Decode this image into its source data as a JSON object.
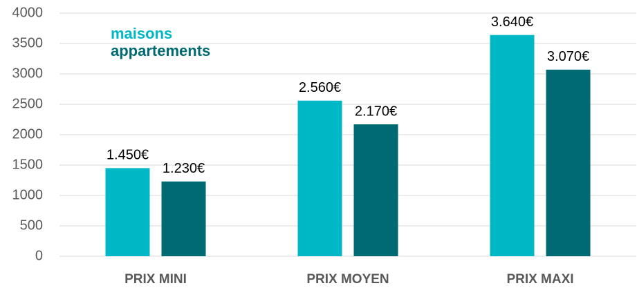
{
  "chart_data": {
    "type": "bar",
    "categories": [
      "PRIX MINI",
      "PRIX MOYEN",
      "PRIX MAXI"
    ],
    "series": [
      {
        "name": "maisons",
        "color": "#00b7c6",
        "values": [
          1450,
          2560,
          3640
        ],
        "value_labels": [
          "1.450€",
          "2.560€",
          "3.640€"
        ]
      },
      {
        "name": "appartements",
        "color": "#006a72",
        "values": [
          1230,
          2170,
          3070
        ],
        "value_labels": [
          "1.230€",
          "2.170€",
          "3.070€"
        ]
      }
    ],
    "ylim": [
      0,
      4000
    ],
    "yticks": [
      0,
      500,
      1000,
      1500,
      2000,
      2500,
      3000,
      3500,
      4000
    ],
    "grid": true,
    "legend": "top-left"
  }
}
